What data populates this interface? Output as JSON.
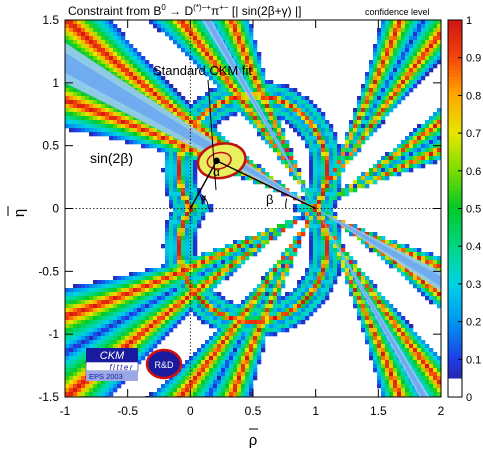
{
  "chart_data": {
    "type": "heatmap",
    "title": {
      "pre": "Constraint from B",
      "sup1": "0",
      "mid": " → D",
      "sup2": "(*)−+",
      "mid2": "π",
      "sup3": "+−",
      "post": " [| sin(2β+γ) |]"
    },
    "legend_title": "confidence level",
    "xlabel": "ρ",
    "ylabel": "η",
    "xlim": [
      -1,
      2
    ],
    "ylim": [
      -1.5,
      1.5
    ],
    "x_ticks": [
      {
        "v": -1,
        "t": "-1"
      },
      {
        "v": -0.5,
        "t": "-0.5"
      },
      {
        "v": 0,
        "t": "0"
      },
      {
        "v": 0.5,
        "t": "0.5"
      },
      {
        "v": 1,
        "t": "1"
      },
      {
        "v": 1.5,
        "t": "1.5"
      },
      {
        "v": 2,
        "t": "2"
      }
    ],
    "y_ticks": [
      {
        "v": -1.5,
        "t": "-1.5"
      },
      {
        "v": -1,
        "t": "-1"
      },
      {
        "v": -0.5,
        "t": "-0.5"
      },
      {
        "v": 0,
        "t": "0"
      },
      {
        "v": 0.5,
        "t": "0.5"
      },
      {
        "v": 1,
        "t": "1"
      },
      {
        "v": 1.5,
        "t": "1.5"
      }
    ],
    "colorbar": {
      "ticks": [
        {
          "v": 0,
          "t": "0"
        },
        {
          "v": 0.1,
          "t": "0.1"
        },
        {
          "v": 0.2,
          "t": "0.2"
        },
        {
          "v": 0.3,
          "t": "0.3"
        },
        {
          "v": 0.4,
          "t": "0.4"
        },
        {
          "v": 0.5,
          "t": "0.5"
        },
        {
          "v": 0.6,
          "t": "0.6"
        },
        {
          "v": 0.7,
          "t": "0.7"
        },
        {
          "v": 0.8,
          "t": "0.8"
        },
        {
          "v": 0.9,
          "t": "0.9"
        },
        {
          "v": 1,
          "t": "1"
        }
      ]
    },
    "annotations": {
      "ckm_fit": "Standard CKM fit",
      "sin2beta": "sin(2β)",
      "alpha": "α",
      "beta": "β",
      "gamma": "γ"
    },
    "ckm_point": {
      "x": 0.21,
      "y": 0.38
    },
    "sin2beta_band": {
      "apex_x": 1,
      "apex_y": 0,
      "slope_center": -0.58,
      "slope_spread_1sigma": 0.04,
      "slope_spread_2sigma": 0.08,
      "second_slope": -1.73
    }
  },
  "logos": {
    "ckmfitter": {
      "line1": "CKM",
      "line2": "fitter",
      "line3": "EPS 2003"
    },
    "rd": "R&D"
  }
}
